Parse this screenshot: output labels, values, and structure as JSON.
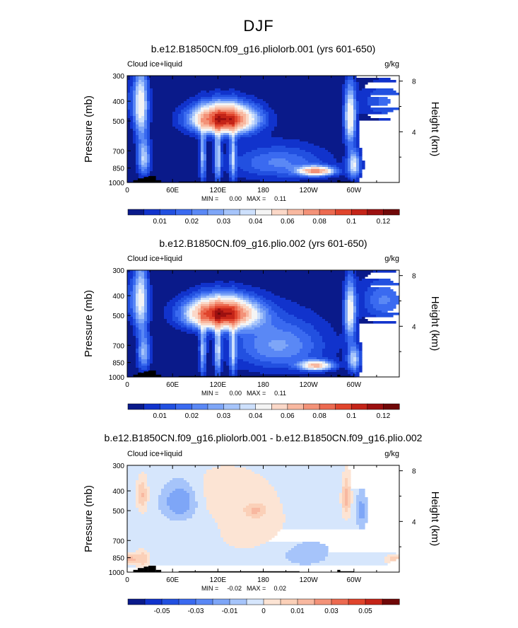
{
  "figure": {
    "title": "DJF"
  },
  "colors": {
    "plot_background": "#1133cc",
    "terrain": "#000000"
  },
  "chart_data": [
    {
      "type": "heatmap",
      "title": "b.e12.B1850CN.f09_g16.pliolorb.001 (yrs 601-650)",
      "variable_label": "Cloud ice+liquid",
      "units_label": "g/kg",
      "ylabel": "Pressure (mb)",
      "ylabel_right": "Height (km)",
      "x_tick_labels": [
        "0",
        "60E",
        "120E",
        "180",
        "120W",
        "60W"
      ],
      "x_ticks_lon": [
        0,
        60,
        120,
        180,
        240,
        300
      ],
      "xlim": [
        0,
        360
      ],
      "y_ticks": [
        300,
        400,
        500,
        700,
        850,
        1000
      ],
      "ylim": [
        1000,
        300
      ],
      "y_right_ticks": [
        4,
        8
      ],
      "min_label": "MIN =",
      "min_value": "0.00",
      "max_label": "MAX =",
      "max_value": "0.11",
      "colorbar": {
        "levels": [
          0.005,
          0.01,
          0.015,
          0.02,
          0.025,
          0.03,
          0.035,
          0.04,
          0.05,
          0.06,
          0.07,
          0.08,
          0.09,
          0.1,
          0.11,
          0.12
        ],
        "tick_labels": [
          "0.01",
          "0.02",
          "0.03",
          "0.04",
          "0.06",
          "0.08",
          "0.1",
          "0.12"
        ],
        "tick_level_index": [
          1,
          3,
          5,
          7,
          9,
          11,
          13,
          15
        ],
        "colors": [
          "#0a1a8a",
          "#1133cc",
          "#2250e0",
          "#3a6af0",
          "#5a88f5",
          "#7ea6f7",
          "#a6c4fa",
          "#cde0fc",
          "#f4f4f4",
          "#fbd8c8",
          "#f8b8a0",
          "#f39278",
          "#ec6a50",
          "#e0442c",
          "#c42418",
          "#9c1010",
          "#700808"
        ]
      },
      "blobs": [
        {
          "lon": 18,
          "p": 420,
          "dlon": 9,
          "dp": 160,
          "amp": 0.045
        },
        {
          "lon": 22,
          "p": 760,
          "dlon": 8,
          "dp": 150,
          "amp": 0.035
        },
        {
          "lon": 128,
          "p": 490,
          "dlon": 38,
          "dp": 75,
          "amp": 0.11
        },
        {
          "lon": 100,
          "p": 740,
          "dlon": 4,
          "dp": 230,
          "amp": 0.03
        },
        {
          "lon": 120,
          "p": 740,
          "dlon": 4,
          "dp": 230,
          "amp": 0.035
        },
        {
          "lon": 140,
          "p": 740,
          "dlon": 4,
          "dp": 230,
          "amp": 0.03
        },
        {
          "lon": 295,
          "p": 480,
          "dlon": 7,
          "dp": 150,
          "amp": 0.05
        },
        {
          "lon": 300,
          "p": 820,
          "dlon": 8,
          "dp": 120,
          "amp": 0.04
        },
        {
          "lon": 250,
          "p": 880,
          "dlon": 22,
          "dp": 45,
          "amp": 0.07
        },
        {
          "lon": 200,
          "p": 800,
          "dlon": 60,
          "dp": 150,
          "amp": 0.02
        },
        {
          "lon": 340,
          "p": 400,
          "dlon": 30,
          "dp": 80,
          "amp": 0.015
        }
      ],
      "terrain": [
        {
          "lon0": 8,
          "lon1": 14,
          "p": 975
        },
        {
          "lon0": 14,
          "lon1": 22,
          "p": 955
        },
        {
          "lon0": 22,
          "lon1": 28,
          "p": 940
        },
        {
          "lon0": 28,
          "lon1": 38,
          "p": 930
        },
        {
          "lon0": 38,
          "lon1": 45,
          "p": 975
        },
        {
          "lon0": 68,
          "lon1": 228,
          "p": 990
        },
        {
          "lon0": 278,
          "lon1": 282,
          "p": 975
        },
        {
          "lon0": 282,
          "lon1": 300,
          "p": 990
        }
      ]
    },
    {
      "type": "heatmap",
      "title": "b.e12.B1850CN.f09_g16.plio.002 (yrs 601-650)",
      "variable_label": "Cloud ice+liquid",
      "units_label": "g/kg",
      "ylabel": "Pressure (mb)",
      "ylabel_right": "Height (km)",
      "x_tick_labels": [
        "0",
        "60E",
        "120E",
        "180",
        "120W",
        "60W"
      ],
      "x_ticks_lon": [
        0,
        60,
        120,
        180,
        240,
        300
      ],
      "xlim": [
        0,
        360
      ],
      "y_ticks": [
        300,
        400,
        500,
        700,
        850,
        1000
      ],
      "ylim": [
        1000,
        300
      ],
      "y_right_ticks": [
        4,
        8
      ],
      "min_label": "MIN =",
      "min_value": "0.00",
      "max_label": "MAX =",
      "max_value": "0.11",
      "colorbar": {
        "levels": [
          0.005,
          0.01,
          0.015,
          0.02,
          0.025,
          0.03,
          0.035,
          0.04,
          0.05,
          0.06,
          0.07,
          0.08,
          0.09,
          0.1,
          0.11,
          0.12
        ],
        "tick_labels": [
          "0.01",
          "0.02",
          "0.03",
          "0.04",
          "0.06",
          "0.08",
          "0.1",
          "0.12"
        ],
        "tick_level_index": [
          1,
          3,
          5,
          7,
          9,
          11,
          13,
          15
        ],
        "colors": [
          "#0a1a8a",
          "#1133cc",
          "#2250e0",
          "#3a6af0",
          "#5a88f5",
          "#7ea6f7",
          "#a6c4fa",
          "#cde0fc",
          "#f4f4f4",
          "#fbd8c8",
          "#f8b8a0",
          "#f39278",
          "#ec6a50",
          "#e0442c",
          "#c42418",
          "#9c1010",
          "#700808"
        ]
      },
      "blobs": [
        {
          "lon": 18,
          "p": 420,
          "dlon": 9,
          "dp": 160,
          "amp": 0.04
        },
        {
          "lon": 22,
          "p": 760,
          "dlon": 8,
          "dp": 150,
          "amp": 0.03
        },
        {
          "lon": 125,
          "p": 490,
          "dlon": 42,
          "dp": 80,
          "amp": 0.11
        },
        {
          "lon": 100,
          "p": 740,
          "dlon": 4,
          "dp": 230,
          "amp": 0.03
        },
        {
          "lon": 120,
          "p": 740,
          "dlon": 4,
          "dp": 230,
          "amp": 0.035
        },
        {
          "lon": 140,
          "p": 740,
          "dlon": 4,
          "dp": 230,
          "amp": 0.03
        },
        {
          "lon": 295,
          "p": 480,
          "dlon": 7,
          "dp": 150,
          "amp": 0.045
        },
        {
          "lon": 300,
          "p": 820,
          "dlon": 8,
          "dp": 120,
          "amp": 0.035
        },
        {
          "lon": 250,
          "p": 880,
          "dlon": 20,
          "dp": 45,
          "amp": 0.06
        },
        {
          "lon": 200,
          "p": 700,
          "dlon": 60,
          "dp": 200,
          "amp": 0.025
        },
        {
          "lon": 340,
          "p": 420,
          "dlon": 30,
          "dp": 100,
          "amp": 0.02
        }
      ],
      "terrain": [
        {
          "lon0": 8,
          "lon1": 14,
          "p": 975
        },
        {
          "lon0": 14,
          "lon1": 22,
          "p": 955
        },
        {
          "lon0": 22,
          "lon1": 28,
          "p": 940
        },
        {
          "lon0": 28,
          "lon1": 38,
          "p": 930
        },
        {
          "lon0": 38,
          "lon1": 45,
          "p": 975
        },
        {
          "lon0": 68,
          "lon1": 228,
          "p": 990
        },
        {
          "lon0": 278,
          "lon1": 282,
          "p": 975
        },
        {
          "lon0": 282,
          "lon1": 300,
          "p": 990
        }
      ]
    },
    {
      "type": "heatmap",
      "title": "b.e12.B1850CN.f09_g16.pliolorb.001 - b.e12.B1850CN.f09_g16.plio.002",
      "variable_label": "Cloud ice+liquid",
      "units_label": "g/kg",
      "ylabel": "Pressure (mb)",
      "ylabel_right": "Height (km)",
      "x_tick_labels": [
        "0",
        "60E",
        "120E",
        "180",
        "120W",
        "60W"
      ],
      "x_ticks_lon": [
        0,
        60,
        120,
        180,
        240,
        300
      ],
      "xlim": [
        0,
        360
      ],
      "y_ticks": [
        300,
        400,
        500,
        700,
        850,
        1000
      ],
      "ylim": [
        1000,
        300
      ],
      "y_right_ticks": [
        4,
        8
      ],
      "min_label": "MIN =",
      "min_value": "-0.02",
      "max_label": "MAX =",
      "max_value": "0.02",
      "colorbar": {
        "levels": [
          -0.06,
          -0.05,
          -0.04,
          -0.03,
          -0.02,
          -0.01,
          -0.005,
          0,
          0.005,
          0.01,
          0.02,
          0.03,
          0.04,
          0.05,
          0.06
        ],
        "tick_labels": [
          "-0.05",
          "-0.03",
          "-0.01",
          "0",
          "0.01",
          "0.03",
          "0.05"
        ],
        "tick_level_index": [
          1,
          3,
          5,
          7,
          9,
          11,
          13
        ],
        "colors": [
          "#0a1a8a",
          "#1133cc",
          "#2250e0",
          "#3a6af0",
          "#5a88f5",
          "#7ea6f7",
          "#a6c4fa",
          "#d6e6fc",
          "#fce4d4",
          "#fbd0b8",
          "#f8b8a0",
          "#f39278",
          "#ec6a50",
          "#e0442c",
          "#c42418",
          "#700808"
        ]
      },
      "background_value": -0.003,
      "blobs": [
        {
          "lon": 130,
          "p": 400,
          "dlon": 70,
          "dp": 130,
          "amp": 0.005
        },
        {
          "lon": 175,
          "p": 650,
          "dlon": 70,
          "dp": 200,
          "amp": 0.005
        },
        {
          "lon": 20,
          "p": 420,
          "dlon": 7,
          "dp": 80,
          "amp": 0.013
        },
        {
          "lon": 20,
          "p": 860,
          "dlon": 10,
          "dp": 80,
          "amp": 0.012
        },
        {
          "lon": 5,
          "p": 860,
          "dlon": 6,
          "dp": 40,
          "amp": 0.01
        },
        {
          "lon": 290,
          "p": 430,
          "dlon": 6,
          "dp": 100,
          "amp": 0.015
        },
        {
          "lon": 170,
          "p": 500,
          "dlon": 14,
          "dp": 40,
          "amp": 0.01
        },
        {
          "lon": 355,
          "p": 870,
          "dlon": 14,
          "dp": 50,
          "amp": 0.012
        },
        {
          "lon": 70,
          "p": 450,
          "dlon": 22,
          "dp": 90,
          "amp": -0.015
        },
        {
          "lon": 230,
          "p": 780,
          "dlon": 45,
          "dp": 160,
          "amp": -0.005
        },
        {
          "lon": 310,
          "p": 500,
          "dlon": 6,
          "dp": 90,
          "amp": -0.01
        }
      ],
      "terrain": [
        {
          "lon0": 8,
          "lon1": 14,
          "p": 975
        },
        {
          "lon0": 14,
          "lon1": 22,
          "p": 955
        },
        {
          "lon0": 22,
          "lon1": 28,
          "p": 940
        },
        {
          "lon0": 28,
          "lon1": 38,
          "p": 930
        },
        {
          "lon0": 38,
          "lon1": 45,
          "p": 975
        },
        {
          "lon0": 68,
          "lon1": 228,
          "p": 990
        },
        {
          "lon0": 278,
          "lon1": 282,
          "p": 975
        },
        {
          "lon0": 282,
          "lon1": 300,
          "p": 990
        }
      ]
    }
  ]
}
